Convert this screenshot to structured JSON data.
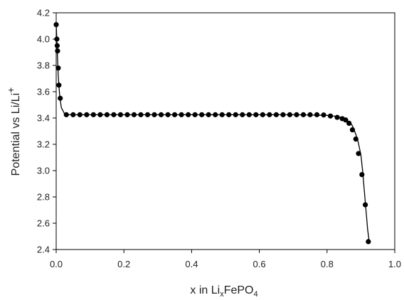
{
  "chart_data": {
    "type": "scatter",
    "title": "",
    "xlabel": {
      "main": "x in Li",
      "sub_x": "x",
      "mid": "FePO",
      "sub_4": "4"
    },
    "ylabel": {
      "main": "Potential vs Li/Li",
      "sup": "+"
    },
    "xlim": [
      0.0,
      1.0
    ],
    "ylim": [
      2.4,
      4.2
    ],
    "x_ticks": [
      "0.0",
      "0.2",
      "0.4",
      "0.6",
      "0.8",
      "1.0"
    ],
    "x_tick_values": [
      0.0,
      0.2,
      0.4,
      0.6,
      0.8,
      1.0
    ],
    "y_ticks": [
      "2.4",
      "2.6",
      "2.8",
      "3.0",
      "3.2",
      "3.4",
      "3.6",
      "3.8",
      "4.0",
      "4.2"
    ],
    "y_tick_values": [
      2.4,
      2.6,
      2.8,
      3.0,
      3.2,
      3.4,
      3.6,
      3.8,
      4.0,
      4.2
    ],
    "grid": false,
    "legend": "none",
    "series": [
      {
        "kind": "line",
        "color": "#000000",
        "x": [
          0.0,
          0.003,
          0.006,
          0.01,
          0.015,
          0.025,
          0.04,
          0.1,
          0.2,
          0.3,
          0.4,
          0.5,
          0.6,
          0.7,
          0.75,
          0.8,
          0.82,
          0.84,
          0.85,
          0.86,
          0.87,
          0.875,
          0.88,
          0.89,
          0.9,
          0.905,
          0.91,
          0.915,
          0.92,
          0.925
        ],
        "y": [
          4.12,
          3.92,
          3.72,
          3.58,
          3.48,
          3.43,
          3.425,
          3.425,
          3.425,
          3.425,
          3.425,
          3.425,
          3.425,
          3.425,
          3.423,
          3.42,
          3.415,
          3.405,
          3.395,
          3.38,
          3.36,
          3.34,
          3.31,
          3.24,
          3.12,
          3.0,
          2.85,
          2.7,
          2.55,
          2.45
        ]
      },
      {
        "kind": "markers",
        "color": "#000000",
        "x": [
          0.0,
          0.002,
          0.003,
          0.004,
          0.006,
          0.008,
          0.012,
          0.03,
          0.05,
          0.07,
          0.09,
          0.11,
          0.13,
          0.15,
          0.17,
          0.19,
          0.21,
          0.23,
          0.25,
          0.27,
          0.29,
          0.31,
          0.33,
          0.35,
          0.37,
          0.39,
          0.41,
          0.43,
          0.45,
          0.47,
          0.49,
          0.51,
          0.53,
          0.55,
          0.57,
          0.59,
          0.61,
          0.63,
          0.65,
          0.67,
          0.69,
          0.71,
          0.73,
          0.75,
          0.77,
          0.79,
          0.81,
          0.83,
          0.845,
          0.855,
          0.865,
          0.875,
          0.885,
          0.893,
          0.903,
          0.913,
          0.922
        ],
        "y": [
          4.11,
          4.0,
          3.95,
          3.91,
          3.78,
          3.65,
          3.55,
          3.425,
          3.425,
          3.425,
          3.425,
          3.425,
          3.425,
          3.425,
          3.425,
          3.425,
          3.425,
          3.425,
          3.425,
          3.425,
          3.425,
          3.425,
          3.425,
          3.425,
          3.425,
          3.425,
          3.425,
          3.425,
          3.425,
          3.425,
          3.425,
          3.425,
          3.425,
          3.425,
          3.425,
          3.425,
          3.425,
          3.425,
          3.425,
          3.425,
          3.425,
          3.425,
          3.425,
          3.425,
          3.425,
          3.423,
          3.415,
          3.405,
          3.395,
          3.385,
          3.36,
          3.31,
          3.24,
          3.13,
          2.97,
          2.74,
          2.46
        ]
      }
    ]
  }
}
